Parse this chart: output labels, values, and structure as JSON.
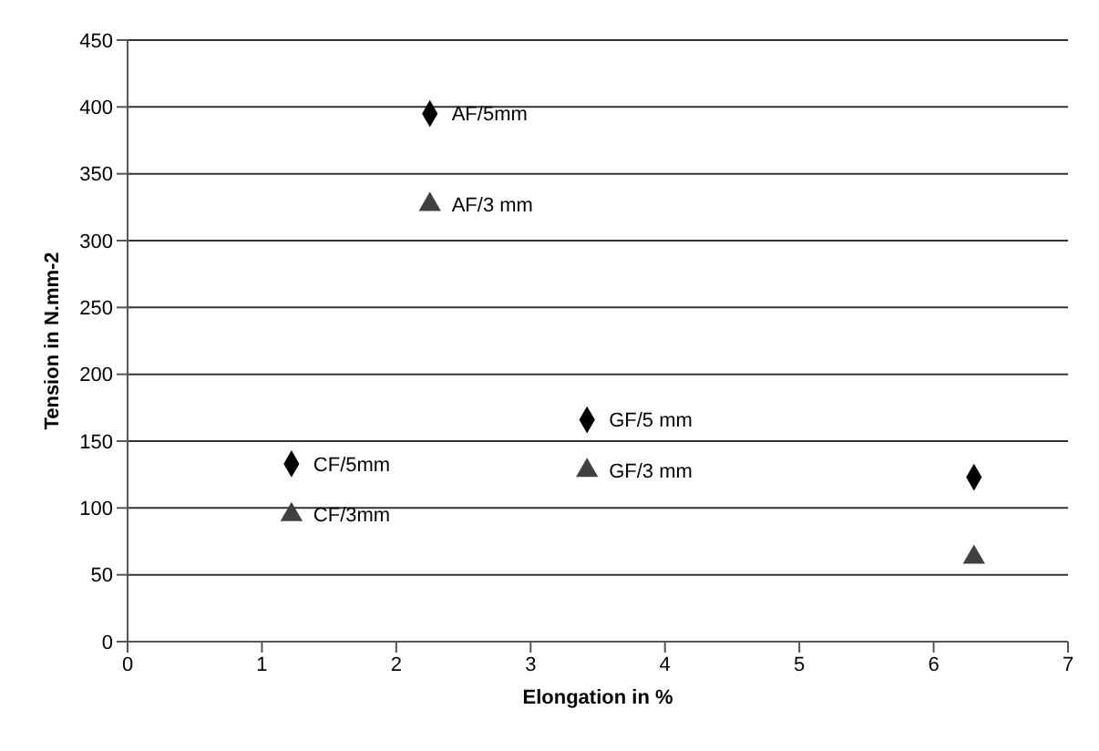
{
  "chart_data": {
    "type": "scatter",
    "xlabel": "Elongation in %",
    "ylabel": "Tension in N.mm-2",
    "xlim": [
      0,
      7
    ],
    "xticks": [
      0,
      1,
      2,
      3,
      4,
      5,
      6,
      7
    ],
    "ylim": [
      0,
      450
    ],
    "yticks": [
      0,
      50,
      100,
      150,
      200,
      250,
      300,
      350,
      400,
      450
    ],
    "grid": "y",
    "legend": false,
    "series": [
      {
        "color": "#000000",
        "marker": "diamond",
        "x": [
          2.25,
          1.22,
          3.42,
          6.3
        ],
        "values": [
          395,
          133,
          166,
          123
        ]
      },
      {
        "color": "#404040",
        "marker": "triangle",
        "x": [
          2.25,
          1.22,
          3.42,
          6.3
        ],
        "values": [
          327,
          95,
          128,
          63
        ]
      }
    ],
    "annotations": [
      {
        "text": "AF/5mm",
        "x": 2.25,
        "y": 395
      },
      {
        "text": "AF/3 mm",
        "x": 2.25,
        "y": 327
      },
      {
        "text": "CF/5mm",
        "x": 1.22,
        "y": 133
      },
      {
        "text": "CF/3mm",
        "x": 1.22,
        "y": 95
      },
      {
        "text": "GF/5 mm",
        "x": 3.42,
        "y": 166
      },
      {
        "text": "GF/3 mm",
        "x": 3.42,
        "y": 128
      }
    ]
  }
}
